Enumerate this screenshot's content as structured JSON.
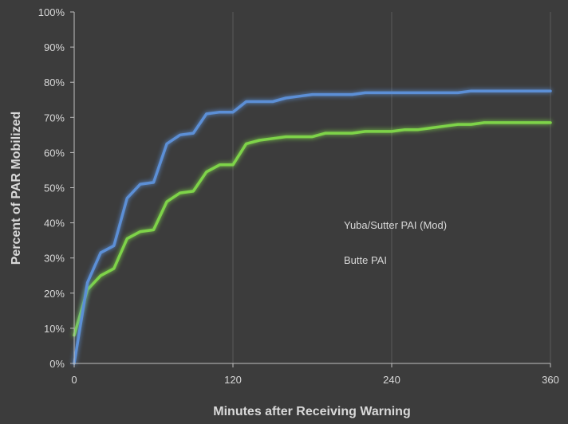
{
  "chart_data": {
    "type": "line",
    "xlabel": "Minutes after Receiving Warning",
    "ylabel": "Percent of PAR Mobilized",
    "xlim": [
      0,
      360
    ],
    "ylim": [
      0,
      100
    ],
    "x_ticks": [
      0,
      120,
      240,
      360
    ],
    "x_tick_labels": [
      "0",
      "120",
      "240",
      "360"
    ],
    "y_ticks": [
      0,
      10,
      20,
      30,
      40,
      50,
      60,
      70,
      80,
      90,
      100
    ],
    "y_tick_labels": [
      "0%",
      "10%",
      "20%",
      "30%",
      "40%",
      "50%",
      "60%",
      "70%",
      "80%",
      "90%",
      "100%"
    ],
    "grid": "vertical",
    "legend_position": "inside-right",
    "series": [
      {
        "name": "Yuba/Sutter PAI (Mod)",
        "color": "#7ed348",
        "points": [
          [
            0,
            8
          ],
          [
            10,
            21
          ],
          [
            20,
            25
          ],
          [
            30,
            27
          ],
          [
            40,
            35.5
          ],
          [
            50,
            37.5
          ],
          [
            60,
            38
          ],
          [
            70,
            46
          ],
          [
            80,
            48.5
          ],
          [
            90,
            49
          ],
          [
            100,
            54.5
          ],
          [
            110,
            56.5
          ],
          [
            120,
            56.5
          ],
          [
            130,
            62.5
          ],
          [
            140,
            63.5
          ],
          [
            150,
            64
          ],
          [
            160,
            64.5
          ],
          [
            170,
            64.5
          ],
          [
            180,
            64.5
          ],
          [
            190,
            65.5
          ],
          [
            200,
            65.5
          ],
          [
            210,
            65.5
          ],
          [
            220,
            66
          ],
          [
            230,
            66
          ],
          [
            240,
            66
          ],
          [
            250,
            66.5
          ],
          [
            260,
            66.5
          ],
          [
            270,
            67
          ],
          [
            280,
            67.5
          ],
          [
            290,
            68
          ],
          [
            300,
            68
          ],
          [
            310,
            68.5
          ],
          [
            320,
            68.5
          ],
          [
            330,
            68.5
          ],
          [
            340,
            68.5
          ],
          [
            350,
            68.5
          ],
          [
            360,
            68.5
          ]
        ]
      },
      {
        "name": "Butte PAI",
        "color": "#5b8fd6",
        "points": [
          [
            0,
            0
          ],
          [
            10,
            23
          ],
          [
            20,
            31.5
          ],
          [
            30,
            33.5
          ],
          [
            40,
            47
          ],
          [
            50,
            51
          ],
          [
            60,
            51.5
          ],
          [
            70,
            62.5
          ],
          [
            80,
            65
          ],
          [
            90,
            65.5
          ],
          [
            100,
            71
          ],
          [
            110,
            71.5
          ],
          [
            120,
            71.5
          ],
          [
            130,
            74.5
          ],
          [
            140,
            74.5
          ],
          [
            150,
            74.5
          ],
          [
            160,
            75.5
          ],
          [
            170,
            76
          ],
          [
            180,
            76.5
          ],
          [
            190,
            76.5
          ],
          [
            200,
            76.5
          ],
          [
            210,
            76.5
          ],
          [
            220,
            77
          ],
          [
            230,
            77
          ],
          [
            240,
            77
          ],
          [
            250,
            77
          ],
          [
            260,
            77
          ],
          [
            270,
            77
          ],
          [
            280,
            77
          ],
          [
            290,
            77
          ],
          [
            300,
            77.5
          ],
          [
            310,
            77.5
          ],
          [
            320,
            77.5
          ],
          [
            330,
            77.5
          ],
          [
            340,
            77.5
          ],
          [
            350,
            77.5
          ],
          [
            360,
            77.5
          ]
        ]
      }
    ]
  }
}
